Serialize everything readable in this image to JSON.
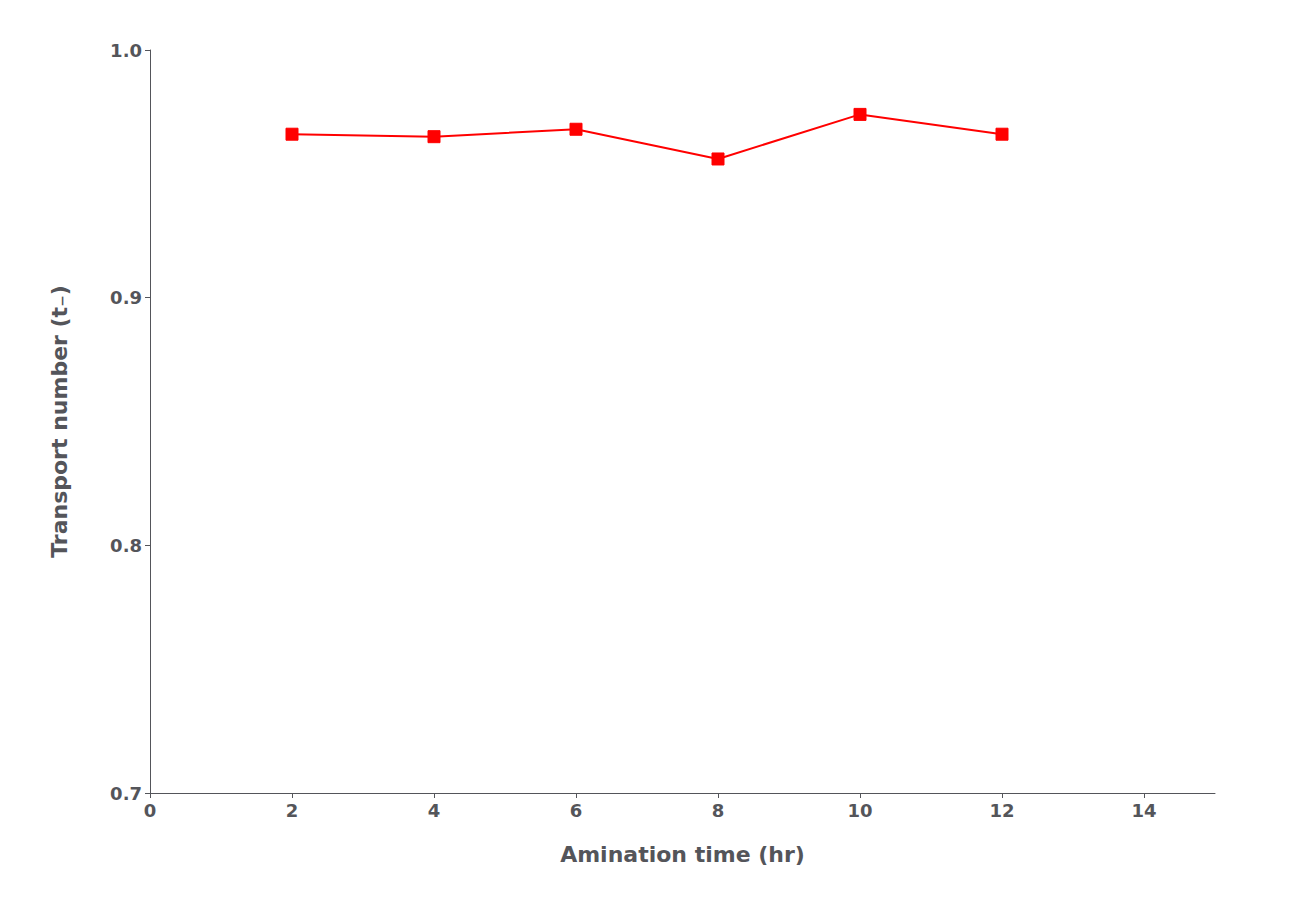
{
  "chart_data": {
    "type": "line",
    "x": [
      2,
      4,
      6,
      8,
      10,
      12
    ],
    "values": [
      0.966,
      0.965,
      0.968,
      0.956,
      0.974,
      0.966
    ],
    "color": "#FF0000",
    "marker": "square",
    "line_style": "solid",
    "xlabel": "Amination time (hr)",
    "ylabel": "Transport number (t₋)",
    "xlim": [
      0,
      15
    ],
    "ylim": [
      0.7,
      1.0
    ],
    "xticks": [
      0,
      2,
      4,
      6,
      8,
      10,
      12,
      14
    ],
    "yticks": [
      0.7,
      0.8,
      0.9,
      {
        "value": 1.0,
        "label": "1.0"
      }
    ],
    "grid": false
  }
}
